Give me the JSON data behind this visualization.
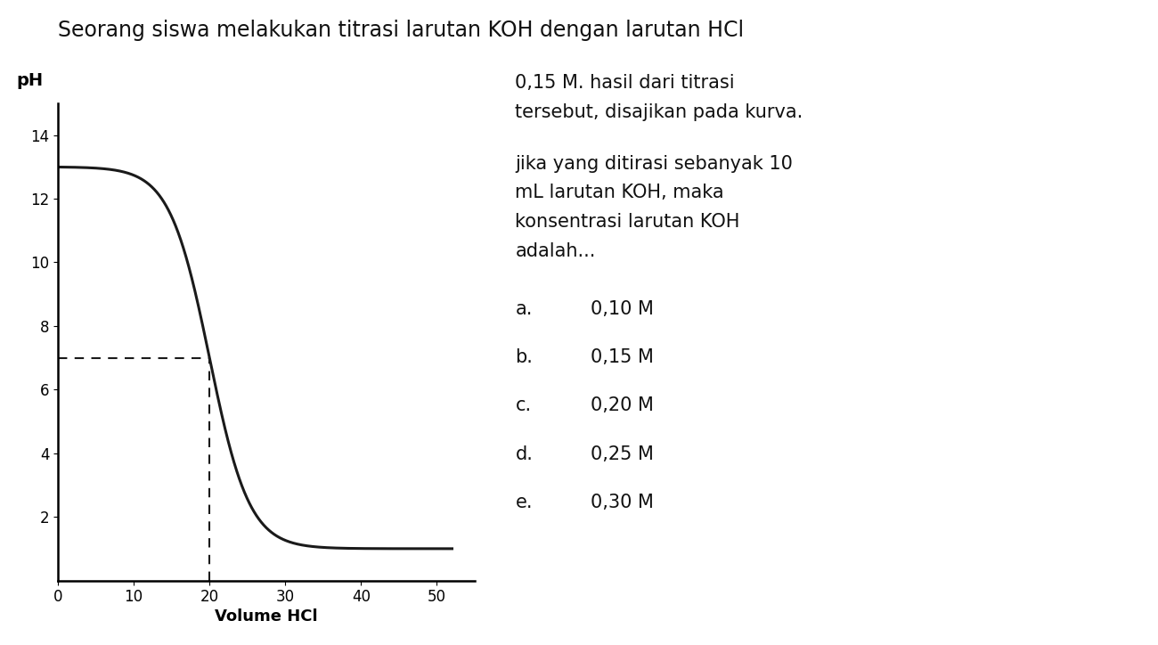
{
  "title": "Seorang siswa melakukan titrasi larutan KOH dengan larutan HCl",
  "right_text_line1": "0,15 M. hasil dari titrasi",
  "right_text_line2": "tersebut, disajikan pada kurva.",
  "right_text_line3": "jika yang ditirasi sebanyak 10",
  "right_text_line4": "mL larutan KOH, maka",
  "right_text_line5": "konsentrasi larutan KOH",
  "right_text_line6": "adalah...",
  "answers": [
    [
      "a.",
      "0,10 M"
    ],
    [
      "b.",
      "0,15 M"
    ],
    [
      "c.",
      "0,20 M"
    ],
    [
      "d.",
      "0,25 M"
    ],
    [
      "e.",
      "0,30 M"
    ]
  ],
  "xlabel": "Volume HCl",
  "ylabel": "pH",
  "xlim": [
    0,
    55
  ],
  "ylim": [
    0,
    15
  ],
  "xticks": [
    0,
    10,
    20,
    30,
    40,
    50
  ],
  "yticks": [
    2,
    4,
    6,
    8,
    10,
    12,
    14
  ],
  "equivalence_x": 20,
  "equivalence_y": 7,
  "background_color": "#ffffff",
  "line_color": "#1a1a1a",
  "dashed_color": "#1a1a1a",
  "title_fontsize": 17,
  "axis_label_fontsize": 13,
  "tick_fontsize": 12,
  "text_fontsize": 15,
  "answer_fontsize": 15
}
